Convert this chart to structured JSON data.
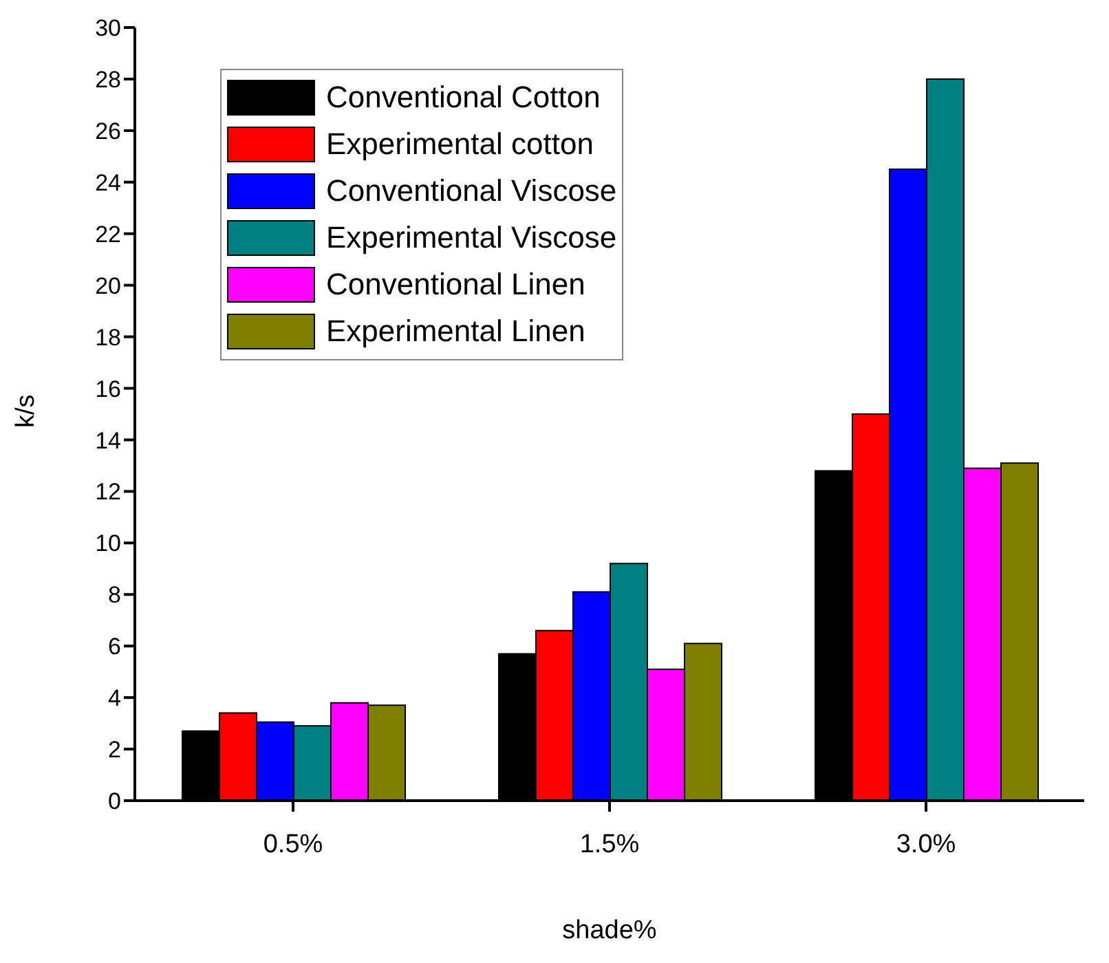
{
  "chart_data": {
    "type": "bar",
    "xlabel": "shade%",
    "ylabel": "k/s",
    "categories": [
      "0.5%",
      "1.5%",
      "3.0%"
    ],
    "series": [
      {
        "name": "Conventional Cotton",
        "color": "#000000",
        "values": [
          2.7,
          5.7,
          12.8
        ]
      },
      {
        "name": "Experimental cotton",
        "color": "#ff0000",
        "values": [
          3.4,
          6.6,
          15.0
        ]
      },
      {
        "name": "Conventional Viscose",
        "color": "#0000ff",
        "values": [
          3.05,
          8.1,
          24.5
        ]
      },
      {
        "name": "Experimental Viscose",
        "color": "#008080",
        "values": [
          2.9,
          9.2,
          28.0
        ]
      },
      {
        "name": "Conventional Linen",
        "color": "#ff00ff",
        "values": [
          3.8,
          5.1,
          12.9
        ]
      },
      {
        "name": "Experimental Linen",
        "color": "#808000",
        "values": [
          3.7,
          6.1,
          13.1
        ]
      }
    ],
    "ylim": [
      0,
      30
    ],
    "yticks": [
      0,
      2,
      4,
      6,
      8,
      10,
      12,
      14,
      16,
      18,
      20,
      22,
      24,
      26,
      28,
      30
    ],
    "grid": false,
    "legend": "top left"
  }
}
